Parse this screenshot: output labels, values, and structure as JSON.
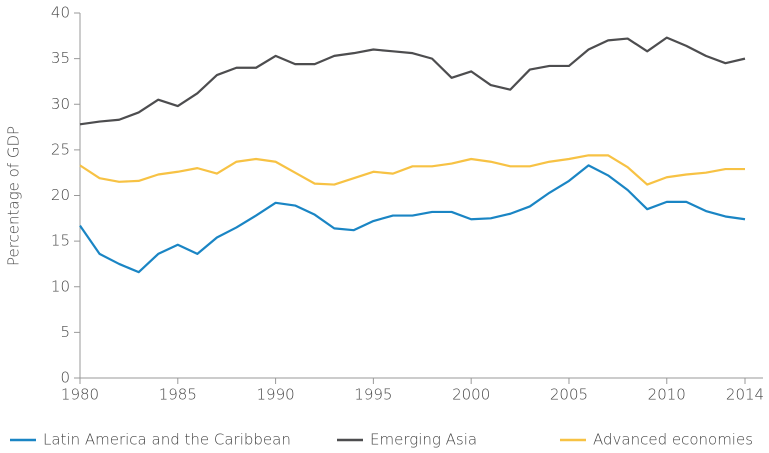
{
  "chart_data": {
    "type": "line",
    "y_label": "Percentage of GDP",
    "x": [
      1980,
      1981,
      1982,
      1983,
      1984,
      1985,
      1986,
      1987,
      1988,
      1989,
      1990,
      1991,
      1992,
      1993,
      1994,
      1995,
      1996,
      1997,
      1998,
      1999,
      2000,
      2001,
      2002,
      2003,
      2004,
      2005,
      2006,
      2007,
      2008,
      2009,
      2010,
      2011,
      2012,
      2013,
      2014
    ],
    "series": [
      {
        "name": "Latin America and the Caribbean",
        "color": "#1a85c4",
        "values": [
          16.7,
          13.6,
          12.5,
          11.6,
          13.6,
          14.6,
          13.6,
          15.4,
          16.5,
          17.8,
          19.2,
          18.9,
          17.9,
          16.4,
          16.2,
          17.2,
          17.8,
          17.8,
          18.2,
          18.2,
          17.4,
          17.5,
          18.0,
          18.8,
          20.3,
          21.6,
          23.3,
          22.2,
          20.6,
          18.5,
          19.3,
          19.3,
          18.3,
          17.7,
          17.4
        ]
      },
      {
        "name": "Emerging Asia",
        "color": "#4d4d4f",
        "values": [
          27.8,
          28.1,
          28.3,
          29.1,
          30.5,
          29.8,
          31.2,
          33.2,
          34.0,
          34.0,
          35.3,
          34.4,
          34.4,
          35.3,
          35.6,
          36.0,
          35.8,
          35.6,
          35.0,
          32.9,
          33.6,
          32.1,
          31.6,
          33.8,
          34.2,
          34.2,
          36.0,
          37.0,
          37.2,
          35.8,
          37.3,
          36.4,
          35.3,
          34.5,
          35.0
        ]
      },
      {
        "name": "Advanced economies",
        "color": "#f7c244",
        "values": [
          23.3,
          21.9,
          21.5,
          21.6,
          22.3,
          22.6,
          23.0,
          22.4,
          23.7,
          24.0,
          23.7,
          22.5,
          21.3,
          21.2,
          21.9,
          22.6,
          22.4,
          23.2,
          23.2,
          23.5,
          24.0,
          23.7,
          23.2,
          23.2,
          23.7,
          24.0,
          24.4,
          24.4,
          23.1,
          21.2,
          22.0,
          22.3,
          22.5,
          22.9,
          22.9
        ]
      }
    ],
    "xlim": [
      1980,
      2014
    ],
    "xticks": [
      1980,
      1985,
      1990,
      1995,
      2000,
      2005,
      2010,
      2014
    ],
    "ylim": [
      0,
      40
    ],
    "yticks": [
      0,
      5,
      10,
      15,
      20,
      25,
      30,
      35,
      40
    ],
    "legend": "bottom"
  }
}
